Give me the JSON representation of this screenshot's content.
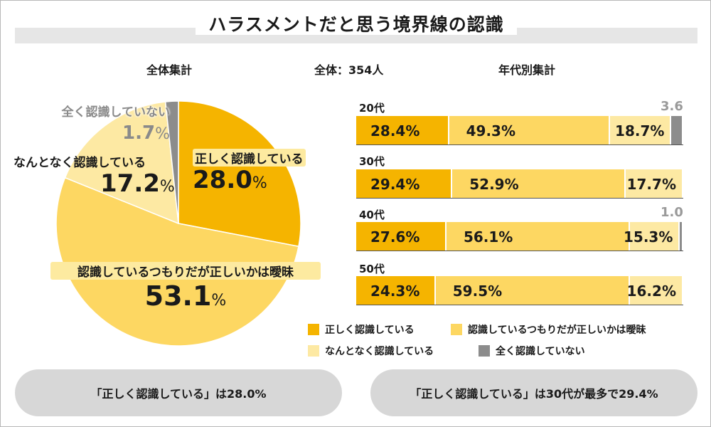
{
  "title": "ハラスメントだと思う境界線の認識",
  "headers": {
    "overall": "全体集計",
    "total": "全体：354人",
    "by_age": "年代別集計"
  },
  "colors": {
    "correct": "#f5b400",
    "ambiguous": "#fdd762",
    "somewhat": "#fde9a3",
    "none": "#8c8c8c"
  },
  "pie": {
    "labels": {
      "correct": "正しく認識している",
      "ambiguous": "認識しているつもりだが正しいかは曖昧",
      "somewhat": "なんとなく認識している",
      "none": "全く認識していない"
    },
    "pct": {
      "correct": "28.0",
      "ambiguous": "53.1",
      "somewhat": "17.2",
      "none": "1.7"
    },
    "pct_sign": "%"
  },
  "chart_data": [
    {
      "type": "pie",
      "title": "全体集計",
      "categories": [
        "正しく認識している",
        "認識しているつもりだが正しいかは曖昧",
        "なんとなく認識している",
        "全く認識していない"
      ],
      "values": [
        28.0,
        53.1,
        17.2,
        1.7
      ],
      "unit": "%"
    },
    {
      "type": "bar",
      "orientation": "horizontal",
      "stacked": true,
      "title": "年代別集計",
      "categories": [
        "20代",
        "30代",
        "40代",
        "50代"
      ],
      "series": [
        {
          "name": "正しく認識している",
          "values": [
            28.4,
            29.4,
            27.6,
            24.3
          ]
        },
        {
          "name": "認識しているつもりだが正しいかは曖昧",
          "values": [
            49.3,
            52.9,
            56.1,
            59.5
          ]
        },
        {
          "name": "なんとなく認識している",
          "values": [
            18.7,
            17.7,
            15.3,
            16.2
          ]
        },
        {
          "name": "全く認識していない",
          "values": [
            3.6,
            0,
            1.0,
            0
          ]
        }
      ],
      "value_labels": [
        [
          "28.4%",
          "49.3%",
          "18.7%",
          "3.6"
        ],
        [
          "29.4%",
          "52.9%",
          "17.7%",
          ""
        ],
        [
          "27.6%",
          "56.1%",
          "15.3%",
          "1.0"
        ],
        [
          "24.3%",
          "59.5%",
          "16.2%",
          ""
        ]
      ]
    }
  ],
  "legend": {
    "correct": "正しく認識している",
    "ambiguous": "認識しているつもりだが正しいかは曖昧",
    "somewhat": "なんとなく認識している",
    "none": "全く認識していない"
  },
  "summary": {
    "left": "「正しく認識している」は28.0%",
    "right": "「正しく認識している」は30代が最多で29.4%"
  }
}
